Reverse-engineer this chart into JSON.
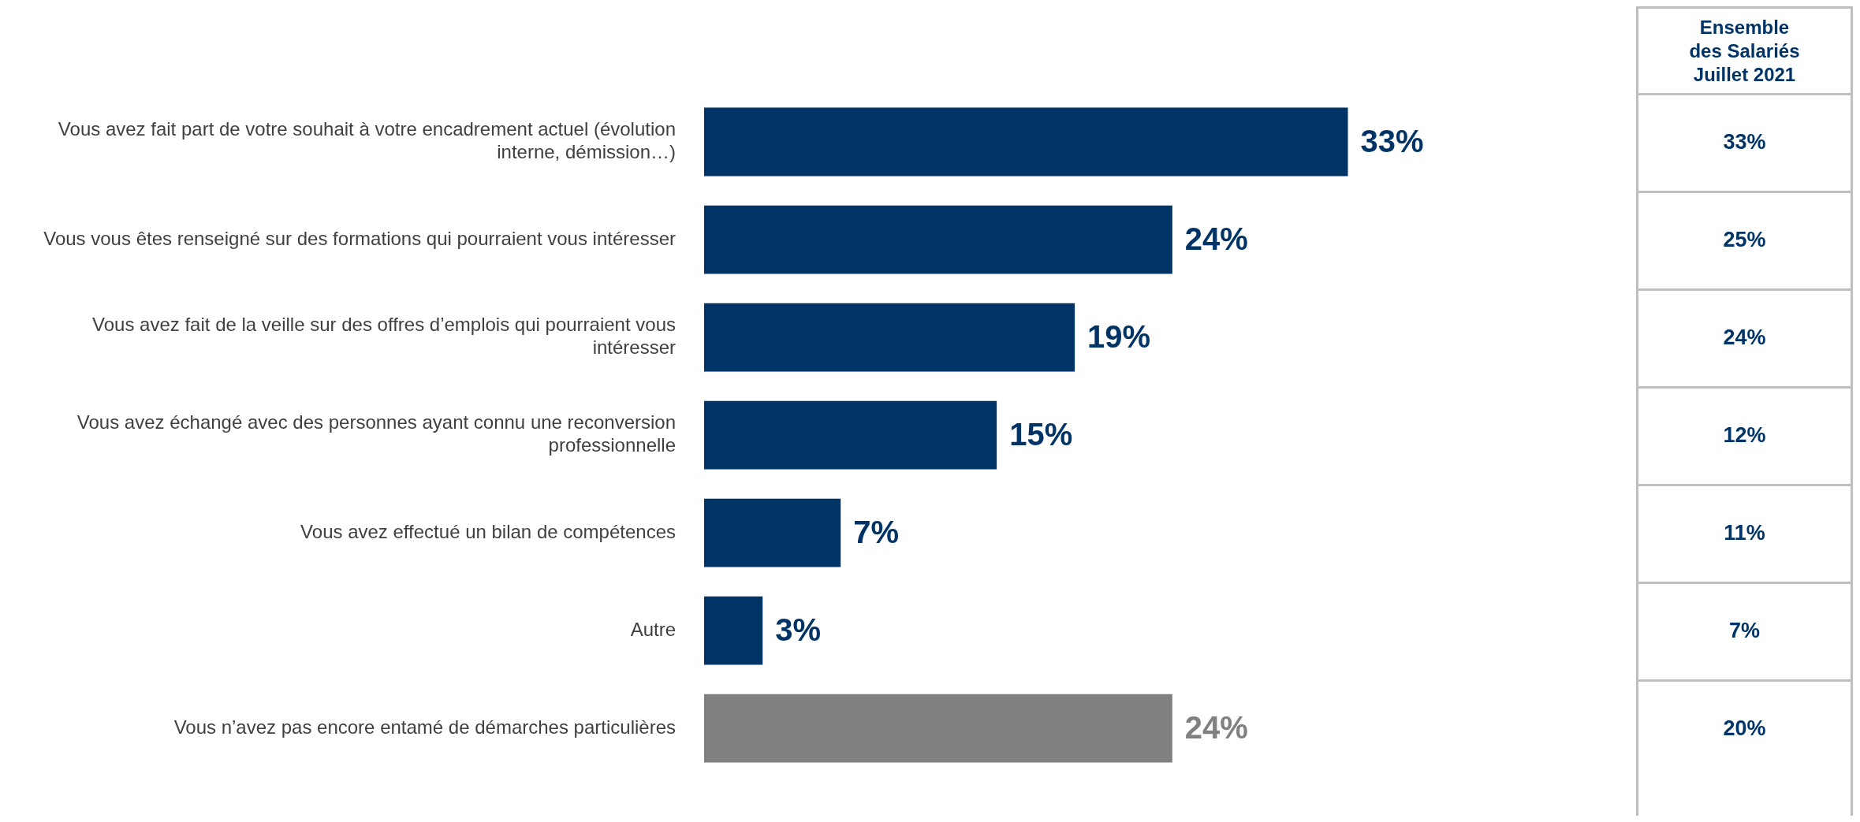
{
  "chart_data": [
    {
      "type": "bar",
      "orientation": "horizontal",
      "legend": false,
      "categories": [
        "Vous avez fait part de votre souhait à votre encadrement actuel (évolution interne, démission…)",
        "Vous vous êtes renseigné sur des formations qui pourraient vous intéresser",
        "Vous avez fait de la veille sur des offres d’emplois qui pourraient vous intéresser",
        "Vous avez échangé avec des personnes ayant connu une reconversion professionnelle",
        "Vous avez effectué un bilan de compétences",
        "Autre",
        "Vous n’avez pas encore entamé de démarches particulières"
      ],
      "series": [
        {
          "values": [
            33,
            24,
            19,
            15,
            7,
            3,
            24
          ],
          "colors": [
            "#003366",
            "#003366",
            "#003366",
            "#003366",
            "#003366",
            "#003366",
            "#808080"
          ],
          "value_labels": [
            "33%",
            "24%",
            "19%",
            "15%",
            "7%",
            "3%",
            "24%"
          ]
        }
      ]
    },
    {
      "type": "other",
      "title": "Ensemble des Salariés Juillet 2021",
      "color": "#003366",
      "annotations": [
        "33%",
        "25%",
        "24%",
        "12%",
        "11%",
        "7%",
        "20%"
      ]
    }
  ]
}
